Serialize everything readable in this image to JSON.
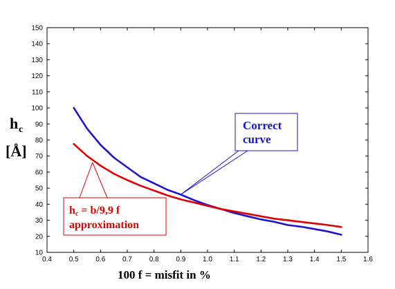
{
  "chart_data": {
    "type": "line",
    "xlabel": "100 f = misfit in %",
    "ylabel": {
      "main": "h",
      "sub": "c",
      "unit": "[Å]"
    },
    "xlim": [
      0.4,
      1.6
    ],
    "ylim": [
      10,
      150
    ],
    "xticks": [
      "0.4",
      "0.5",
      "0.6",
      "0.7",
      "0.8",
      "0.9",
      "1.0",
      "1.1",
      "1.2",
      "1.3",
      "1.4",
      "1.5",
      "1.6"
    ],
    "yticks": [
      "10",
      "20",
      "30",
      "40",
      "50",
      "60",
      "70",
      "80",
      "90",
      "100",
      "110",
      "120",
      "130",
      "140",
      "150"
    ],
    "grid": false,
    "series": [
      {
        "id": "correct",
        "color": "#1a14cc",
        "x": [
          0.5,
          0.55,
          0.6,
          0.65,
          0.7,
          0.75,
          0.8,
          0.85,
          0.9,
          0.95,
          1.0,
          1.05,
          1.1,
          1.15,
          1.2,
          1.25,
          1.3,
          1.35,
          1.4,
          1.45,
          1.5
        ],
        "y": [
          100,
          87,
          77,
          69,
          63,
          57,
          53,
          49,
          46,
          42.5,
          39.5,
          37,
          34.5,
          32.5,
          30.5,
          29,
          27,
          26,
          24.5,
          23,
          21
        ]
      },
      {
        "id": "approximation",
        "color": "#e00000",
        "x": [
          0.5,
          0.55,
          0.6,
          0.65,
          0.7,
          0.75,
          0.8,
          0.85,
          0.9,
          0.95,
          1.0,
          1.05,
          1.1,
          1.15,
          1.2,
          1.25,
          1.3,
          1.35,
          1.4,
          1.45,
          1.5
        ],
        "y": [
          77.5,
          70,
          64,
          59,
          55,
          51.5,
          48.5,
          45.5,
          43,
          41,
          39,
          37,
          35.5,
          34,
          32.5,
          31,
          30,
          29,
          28,
          27,
          25.8
        ]
      }
    ],
    "annotations": [
      {
        "id": "correct-label",
        "lines": [
          "Correct",
          "curve"
        ],
        "color": "#1a14cc",
        "pointer_to": {
          "x": 0.9,
          "y": 46
        }
      },
      {
        "id": "approx-label",
        "line1": {
          "main": "h",
          "sub": "c",
          "rest": " = b/9,9 f"
        },
        "line2": "approximation",
        "color": "#e00000",
        "pointer_to": {
          "x": 0.57,
          "y": 66
        }
      }
    ]
  }
}
